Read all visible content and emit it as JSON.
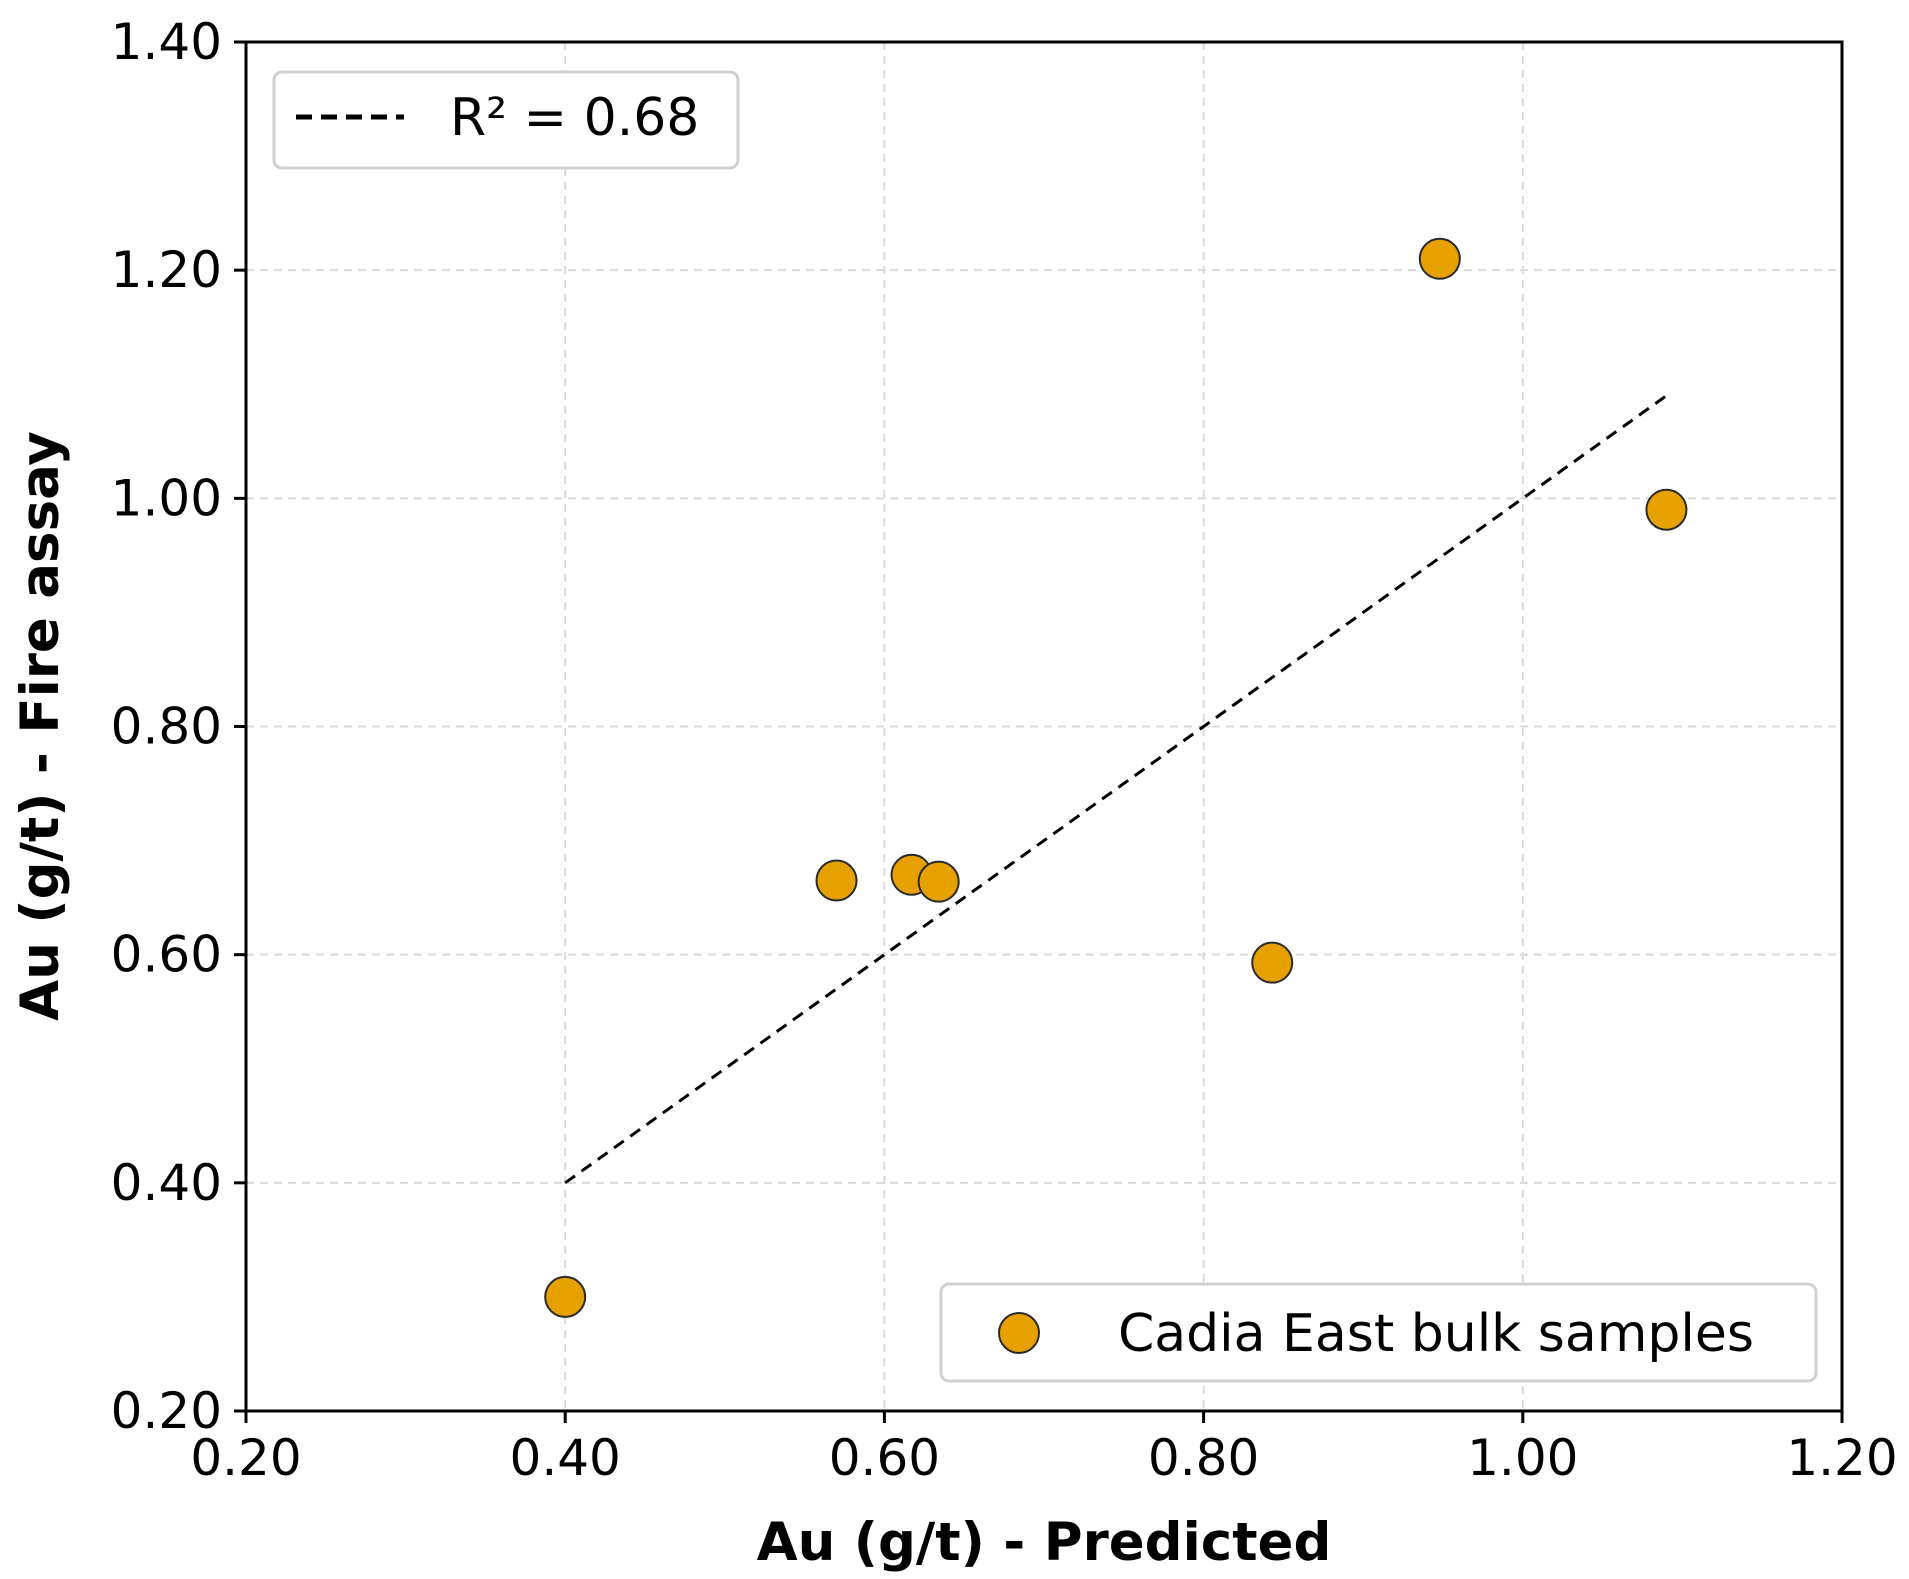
{
  "chart_data": {
    "type": "scatter",
    "xlabel": "Au (g/t) - Predicted",
    "ylabel": "Au (g/t) - Fire assay",
    "xlim": [
      0.2,
      1.2
    ],
    "ylim": [
      0.2,
      1.4
    ],
    "xticks": [
      "0.20",
      "0.40",
      "0.60",
      "0.80",
      "1.00",
      "1.20"
    ],
    "xtick_values": [
      0.2,
      0.4,
      0.6,
      0.8,
      1.0,
      1.2
    ],
    "yticks": [
      "0.20",
      "0.40",
      "0.60",
      "0.80",
      "1.00",
      "1.20",
      "1.40"
    ],
    "ytick_values": [
      0.2,
      0.4,
      0.6,
      0.8,
      1.0,
      1.2,
      1.4
    ],
    "grid": true,
    "series": [
      {
        "name": "Cadia East bulk samples",
        "color": "#E6A000",
        "x": [
          0.4,
          0.57,
          0.617,
          0.634,
          0.843,
          0.948,
          1.09
        ],
        "y": [
          0.3,
          0.665,
          0.67,
          0.664,
          0.593,
          1.21,
          0.99
        ]
      }
    ],
    "trendline": {
      "label": "R² = 0.68",
      "style": "dashed",
      "color": "#000000",
      "x": [
        0.4,
        1.09
      ],
      "y": [
        0.4,
        1.09
      ]
    },
    "legends": [
      {
        "entry": "R² = 0.68",
        "location": "upper-left"
      },
      {
        "entry": "Cadia East bulk samples",
        "location": "lower-right"
      }
    ]
  }
}
